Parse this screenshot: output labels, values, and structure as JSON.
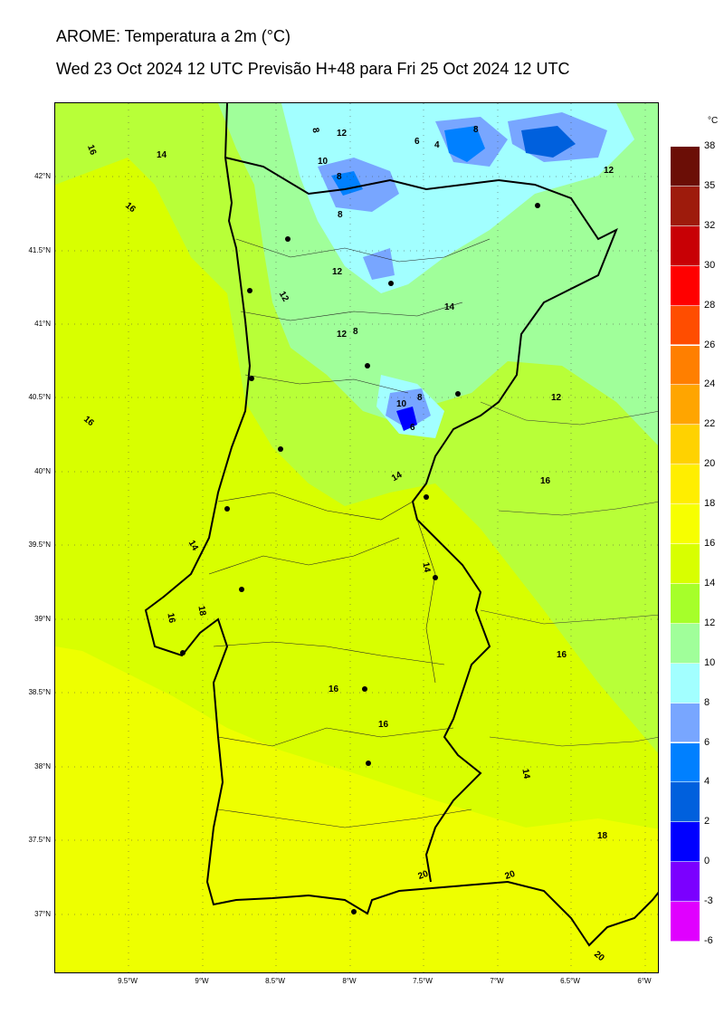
{
  "header": {
    "title": "AROME: Temperatura a 2m (°C)",
    "subtitle": "Wed 23 Oct 2024 12 UTC Previsão H+48 para Fri 25 Oct 2024 12 UTC"
  },
  "axes": {
    "latitudes": [
      "42°N",
      "41.5°N",
      "41°N",
      "40.5°N",
      "40°N",
      "39.5°N",
      "39°N",
      "38.5°N",
      "38°N",
      "37.5°N",
      "37°N"
    ],
    "longitudes": [
      "9.5°W",
      "9°W",
      "8.5°W",
      "8°W",
      "7.5°W",
      "7°W",
      "6.5°W",
      "6°W"
    ]
  },
  "colorbar": {
    "unit": "°C",
    "ticks": [
      "38",
      "35",
      "32",
      "30",
      "28",
      "26",
      "24",
      "22",
      "20",
      "18",
      "16",
      "14",
      "12",
      "10",
      "8",
      "6",
      "4",
      "2",
      "0",
      "-3",
      "-6"
    ],
    "colors": [
      "#6b0e06",
      "#9e1b0c",
      "#c80005",
      "#ff0000",
      "#ff4d00",
      "#ff7f00",
      "#ffa500",
      "#ffd200",
      "#ffee00",
      "#f7ff00",
      "#d8ff00",
      "#a6ff2a",
      "#a0ff9a",
      "#a2ffff",
      "#78a6ff",
      "#0080ff",
      "#0060dd",
      "#0000ff",
      "#7b00ff",
      "#e000ff"
    ]
  },
  "contour_labels": [
    "16",
    "14",
    "16",
    "16",
    "12",
    "8",
    "10",
    "8",
    "8",
    "6",
    "4",
    "8",
    "12",
    "12",
    "12",
    "8",
    "12",
    "14",
    "10",
    "8",
    "6",
    "12",
    "14",
    "16",
    "14",
    "14",
    "18",
    "16",
    "16",
    "16",
    "16",
    "14",
    "18",
    "20",
    "20",
    "20"
  ],
  "cities": [
    "city-1",
    "city-2",
    "city-3",
    "city-4",
    "city-5",
    "city-6",
    "city-7",
    "city-8",
    "city-9",
    "city-10",
    "city-11",
    "city-12",
    "city-13",
    "city-14",
    "city-15",
    "city-16"
  ]
}
